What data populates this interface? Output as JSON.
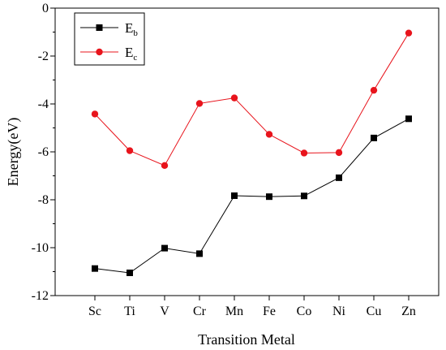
{
  "chart_data": {
    "type": "line",
    "xlabel": "Transition Metal",
    "ylabel": "Energy(eV)",
    "categories": [
      "Sc",
      "Ti",
      "V",
      "Cr",
      "Mn",
      "Fe",
      "Co",
      "Ni",
      "Cu",
      "Zn"
    ],
    "ylim": [
      -12,
      0
    ],
    "yticks": [
      0,
      -2,
      -4,
      -6,
      -8,
      -10,
      -12
    ],
    "grid": false,
    "legend_position": "top-left",
    "series": [
      {
        "name": "E",
        "subscript": "b",
        "color": "#000000",
        "marker": "square",
        "values": [
          -10.87,
          -11.05,
          -10.02,
          -10.25,
          -7.83,
          -7.87,
          -7.84,
          -7.08,
          -5.42,
          -4.62
        ]
      },
      {
        "name": "E",
        "subscript": "c",
        "color": "#e8141c",
        "marker": "circle",
        "values": [
          -4.42,
          -5.95,
          -6.57,
          -3.98,
          -3.75,
          -5.27,
          -6.05,
          -6.03,
          -3.43,
          -1.04
        ]
      }
    ]
  }
}
